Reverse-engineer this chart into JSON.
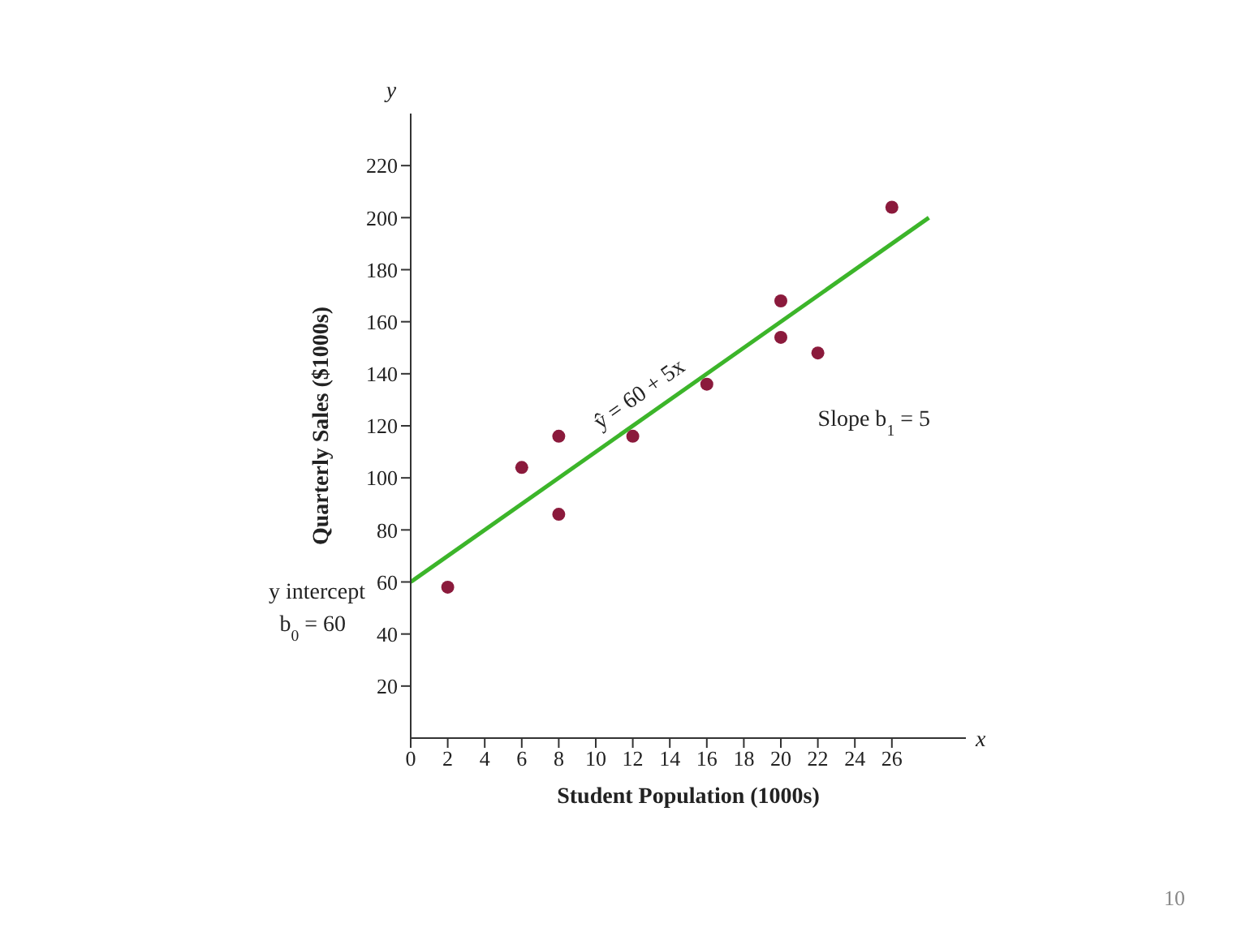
{
  "chart_data": {
    "type": "scatter",
    "xlabel": "Student Population (1000s)",
    "ylabel": "Quarterly Sales ($1000s)",
    "xlim": [
      0,
      30
    ],
    "ylim": [
      0,
      240
    ],
    "xticks": [
      0,
      2,
      4,
      6,
      8,
      10,
      12,
      14,
      16,
      18,
      20,
      22,
      24,
      26
    ],
    "yticks": [
      20,
      40,
      60,
      80,
      100,
      120,
      140,
      160,
      180,
      200,
      220
    ],
    "marker": "circle",
    "series": [
      {
        "color": "#8b1a3c",
        "x": [
          2,
          6,
          8,
          8,
          12,
          16,
          20,
          20,
          22,
          26
        ],
        "values": [
          58,
          104,
          116,
          86,
          116,
          136,
          168,
          154,
          148,
          204
        ]
      },
      {
        "type": "line",
        "color": "#3cb52a",
        "marker": "none",
        "x": [
          0,
          28
        ],
        "values": [
          60,
          200
        ]
      }
    ],
    "annotations": [
      "ŷ = 60 + 5x",
      "y intercept",
      "b$_{0}$ = 60",
      "Slope b$_{1}$ = 5",
      "y",
      "x",
      "10"
    ]
  }
}
